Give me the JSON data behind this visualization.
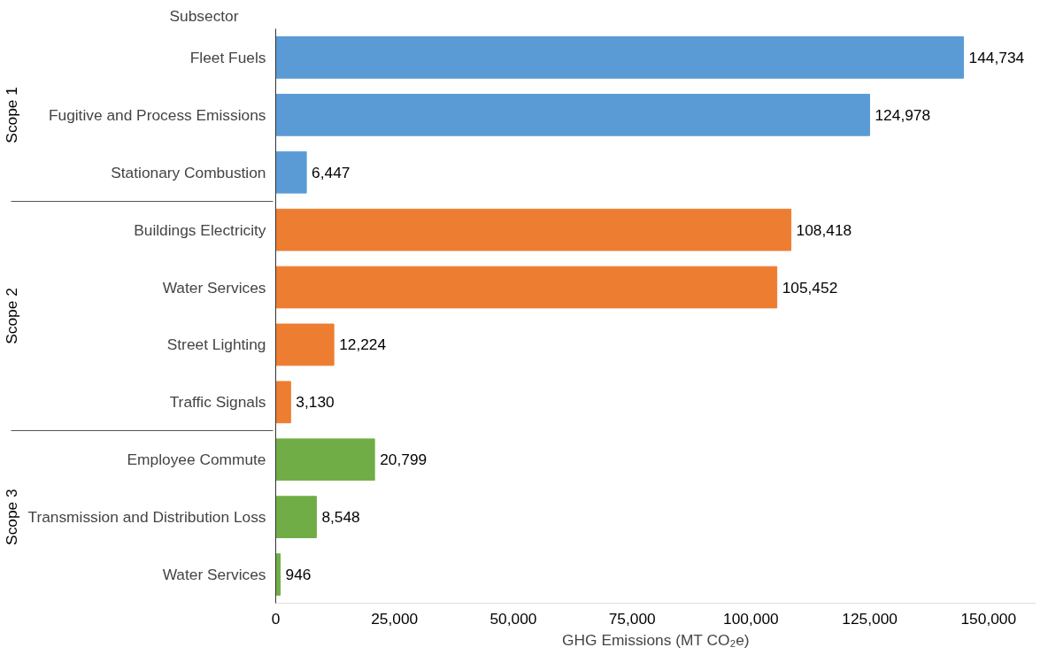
{
  "chart_data": {
    "type": "bar",
    "orientation": "horizontal",
    "annotations": [
      "Scope 1",
      "Scope 2",
      "Scope 3"
    ],
    "ylabel": "Subsector",
    "xlabel": "GHG Emissions (MT CO₂e)",
    "categories": [
      "Fleet Fuels",
      "Fugitive and Process Emissions",
      "Stationary Combustion",
      "Buildings Electricity",
      "Water Services",
      "Street Lighting",
      "Traffic Signals",
      "Employee Commute",
      "Transmission and Distribution Loss",
      "Water Services"
    ],
    "series": [
      {
        "color": "#5b9bd5",
        "values": [
          144734,
          124978,
          6447,
          null,
          null,
          null,
          null,
          null,
          null,
          null
        ],
        "value_labels": [
          "144,734",
          "124,978",
          "6,447",
          null,
          null,
          null,
          null,
          null,
          null,
          null
        ]
      },
      {
        "color": "#ed7d31",
        "values": [
          null,
          null,
          null,
          108418,
          105452,
          12224,
          3130,
          null,
          null,
          null
        ],
        "value_labels": [
          null,
          null,
          null,
          "108,418",
          "105,452",
          "12,224",
          "3,130",
          null,
          null,
          null
        ]
      },
      {
        "color": "#70ad47",
        "values": [
          null,
          null,
          null,
          null,
          null,
          null,
          null,
          20799,
          8548,
          946
        ],
        "value_labels": [
          null,
          null,
          null,
          null,
          null,
          null,
          null,
          "20,799",
          "8,548",
          "946"
        ]
      }
    ],
    "xlim": [
      0,
      160000
    ],
    "xticks": [
      {
        "value": 0,
        "label": "0"
      },
      {
        "value": 25000,
        "label": "25,000"
      },
      {
        "value": 50000,
        "label": "50,000"
      },
      {
        "value": 75000,
        "label": "75,000"
      },
      {
        "value": 100000,
        "label": "100,000"
      },
      {
        "value": 125000,
        "label": "125,000"
      },
      {
        "value": 150000,
        "label": "150,000"
      }
    ],
    "grid": false
  }
}
